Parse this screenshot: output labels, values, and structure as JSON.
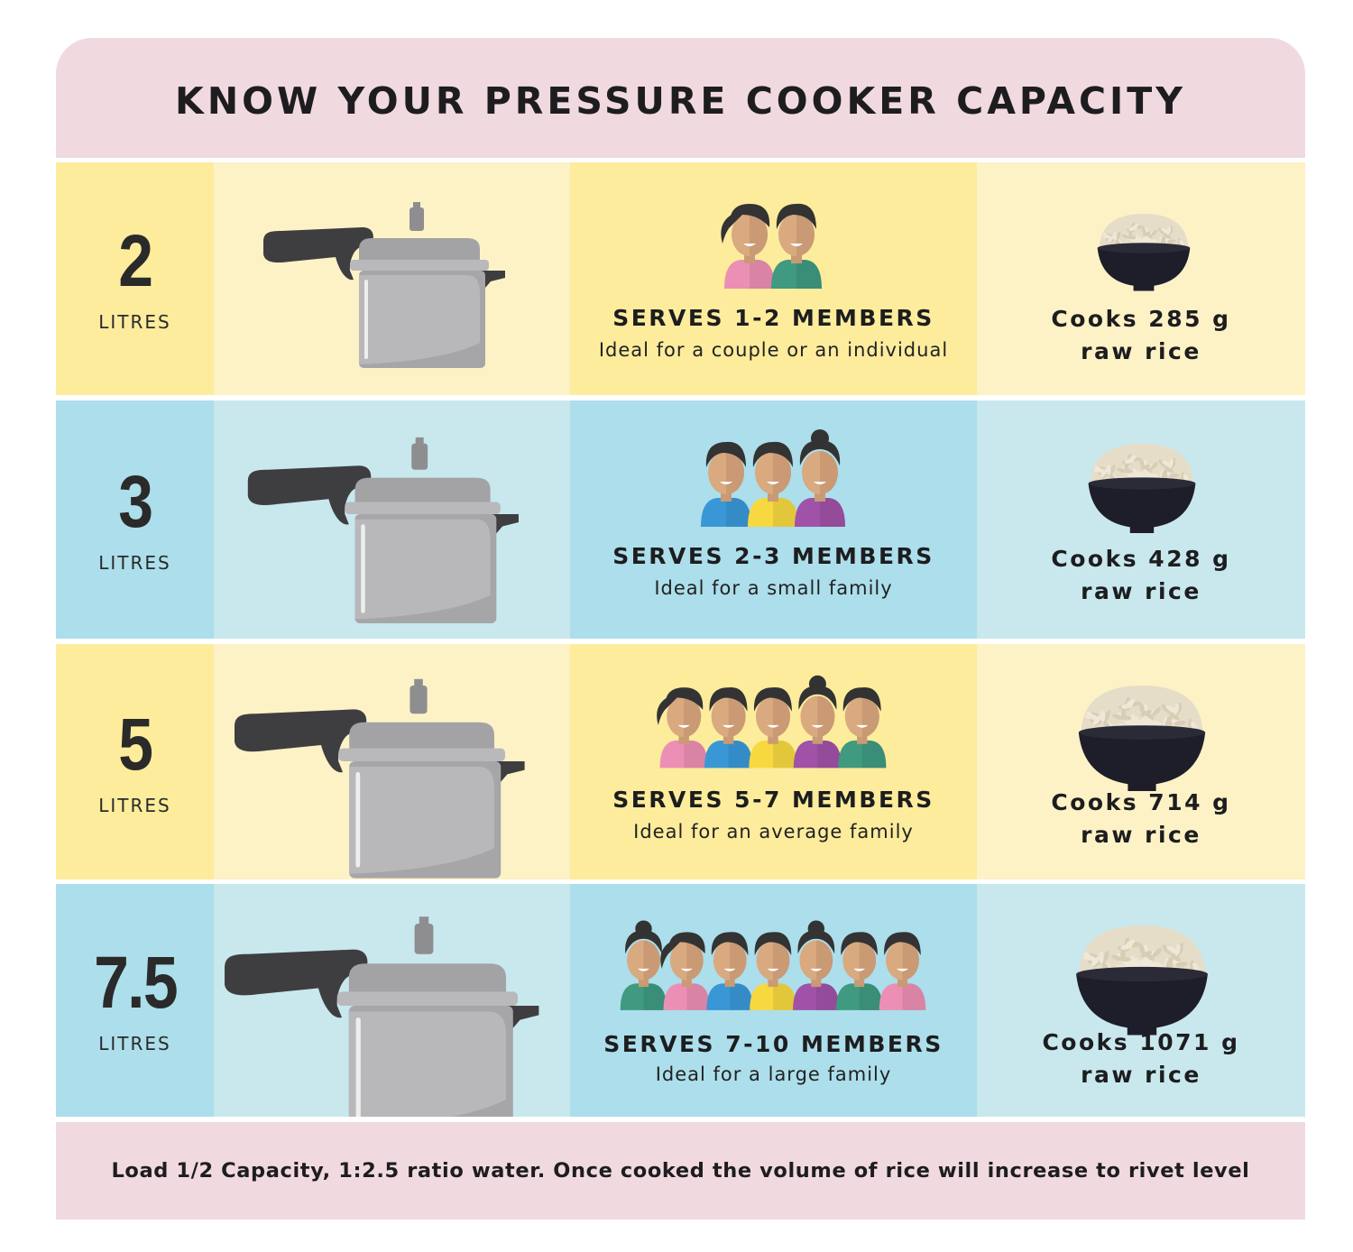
{
  "title": "KNOW YOUR PRESSURE COOKER CAPACITY",
  "rows": [
    {
      "capacity": "2",
      "unit": "LITRES",
      "serves": "SERVES 1-2 MEMBERS",
      "description": "Ideal for a couple or an individual",
      "rice_line1": "Cooks 285 g",
      "rice_line2": "raw rice",
      "theme": "yellow",
      "people": [
        "pink",
        "green"
      ]
    },
    {
      "capacity": "3",
      "unit": "LITRES",
      "serves": "SERVES 2-3 MEMBERS",
      "description": "Ideal for a small family",
      "rice_line1": "Cooks 428 g",
      "rice_line2": "raw rice",
      "theme": "blue",
      "people": [
        "blue",
        "yellow",
        "purple"
      ]
    },
    {
      "capacity": "5",
      "unit": "LITRES",
      "serves": "SERVES 5-7 MEMBERS",
      "description": "Ideal for an average family",
      "rice_line1": "Cooks 714 g",
      "rice_line2": "raw rice",
      "theme": "yellow",
      "people": [
        "pink",
        "blue",
        "yellow",
        "purple",
        "green"
      ]
    },
    {
      "capacity": "7.5",
      "unit": "LITRES",
      "serves": "SERVES 7-10 MEMBERS",
      "description": "Ideal for a large family",
      "rice_line1": "Cooks 1071 g",
      "rice_line2": "raw rice",
      "theme": "blue",
      "people": [
        "green",
        "pink",
        "blue",
        "yellow",
        "purple",
        "green",
        "pink"
      ]
    }
  ],
  "footer_note": "Load 1/2 Capacity, 1:2.5 ratio water. Once cooked the volume of rice will increase to rivet level",
  "colors": {
    "header_bg": "#f1d9e0",
    "yellow_dark": "#fcec9c",
    "yellow_light": "#fdf2c6",
    "blue_dark": "#acdeeb",
    "blue_light": "#c8e8ee",
    "text": "#1d1d1f",
    "people": {
      "pink": "#ec8fb4",
      "green": "#3f9a80",
      "blue": "#3a97d6",
      "yellow": "#f7d840",
      "purple": "#a052a8"
    }
  }
}
